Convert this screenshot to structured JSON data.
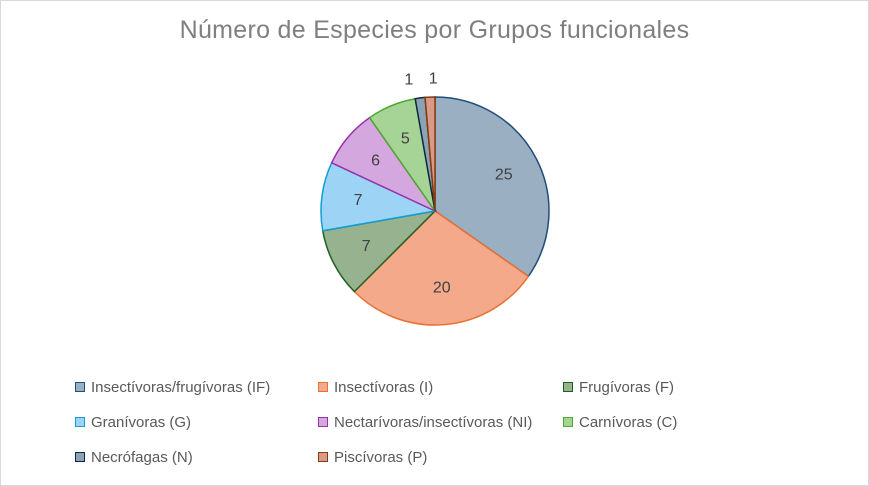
{
  "chart_data": {
    "type": "pie",
    "title": "Número de Especies por Grupos funcionales",
    "categories": [
      "Insectívoras/frugívoras (IF)",
      "Insectívoras (I)",
      "Frugívoras (F)",
      "Granívoras (G)",
      "Nectarívoras/insectívoras (NI)",
      "Carnívoras (C)",
      "Necrófagas (N)",
      "Piscívoras (P)"
    ],
    "values": [
      25,
      20,
      7,
      7,
      6,
      5,
      1,
      1
    ],
    "colors": [
      "#9aafc2",
      "#f4a98a",
      "#96b28e",
      "#9dd4f5",
      "#d4a8de",
      "#a6d496",
      "#8ca3b5",
      "#d99b87"
    ],
    "border_colors": [
      "#1f4e79",
      "#e97132",
      "#1e5f23",
      "#0f9ed5",
      "#9b2fae",
      "#4ea72e",
      "#0e2841",
      "#843c0c"
    ],
    "legend_position": "bottom",
    "data_labels": true
  }
}
